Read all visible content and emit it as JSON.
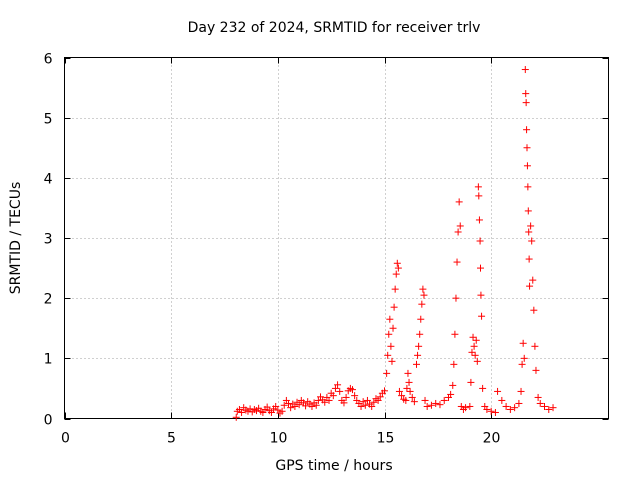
{
  "chart_data": {
    "type": "scatter",
    "title": "Day 232 of 2024, SRMTID for receiver trlv",
    "xlabel": "GPS time / hours",
    "ylabel": "SRMTID / TECUs",
    "xlim": [
      0,
      25.5
    ],
    "ylim": [
      0,
      6
    ],
    "xticks": [
      {
        "value": 0,
        "label": "0"
      },
      {
        "value": 5,
        "label": "5"
      },
      {
        "value": 10,
        "label": "10"
      },
      {
        "value": 15,
        "label": "15"
      },
      {
        "value": 20,
        "label": "20"
      }
    ],
    "yticks": [
      {
        "value": 0,
        "label": "0"
      },
      {
        "value": 1,
        "label": "1"
      },
      {
        "value": 2,
        "label": "2"
      },
      {
        "value": 3,
        "label": "3"
      },
      {
        "value": 4,
        "label": "4"
      },
      {
        "value": 5,
        "label": "5"
      },
      {
        "value": 6,
        "label": "6"
      }
    ],
    "grid": true,
    "marker": "+",
    "color": "#ff0000",
    "series": [
      {
        "name": "SRMTID",
        "points": [
          [
            8.05,
            0.02
          ],
          [
            8.1,
            0.12
          ],
          [
            8.2,
            0.15
          ],
          [
            8.3,
            0.1
          ],
          [
            8.4,
            0.18
          ],
          [
            8.5,
            0.14
          ],
          [
            8.6,
            0.12
          ],
          [
            8.7,
            0.16
          ],
          [
            8.8,
            0.11
          ],
          [
            8.9,
            0.15
          ],
          [
            9.0,
            0.13
          ],
          [
            9.1,
            0.17
          ],
          [
            9.2,
            0.12
          ],
          [
            9.3,
            0.1
          ],
          [
            9.4,
            0.15
          ],
          [
            9.5,
            0.19
          ],
          [
            9.6,
            0.13
          ],
          [
            9.7,
            0.1
          ],
          [
            9.8,
            0.16
          ],
          [
            9.9,
            0.2
          ],
          [
            10.0,
            0.14
          ],
          [
            10.1,
            0.09
          ],
          [
            10.2,
            0.12
          ],
          [
            10.3,
            0.22
          ],
          [
            10.4,
            0.3
          ],
          [
            10.5,
            0.25
          ],
          [
            10.6,
            0.18
          ],
          [
            10.7,
            0.24
          ],
          [
            10.8,
            0.2
          ],
          [
            10.9,
            0.27
          ],
          [
            11.0,
            0.23
          ],
          [
            11.1,
            0.3
          ],
          [
            11.2,
            0.26
          ],
          [
            11.3,
            0.21
          ],
          [
            11.4,
            0.28
          ],
          [
            11.5,
            0.24
          ],
          [
            11.6,
            0.2
          ],
          [
            11.7,
            0.26
          ],
          [
            11.8,
            0.22
          ],
          [
            11.9,
            0.3
          ],
          [
            12.0,
            0.36
          ],
          [
            12.1,
            0.31
          ],
          [
            12.2,
            0.27
          ],
          [
            12.3,
            0.35
          ],
          [
            12.4,
            0.3
          ],
          [
            12.5,
            0.42
          ],
          [
            12.6,
            0.38
          ],
          [
            12.7,
            0.5
          ],
          [
            12.8,
            0.56
          ],
          [
            12.9,
            0.45
          ],
          [
            13.0,
            0.3
          ],
          [
            13.1,
            0.26
          ],
          [
            13.2,
            0.35
          ],
          [
            13.3,
            0.46
          ],
          [
            13.4,
            0.5
          ],
          [
            13.5,
            0.48
          ],
          [
            13.6,
            0.38
          ],
          [
            13.7,
            0.3
          ],
          [
            13.8,
            0.25
          ],
          [
            13.9,
            0.2
          ],
          [
            14.0,
            0.28
          ],
          [
            14.1,
            0.22
          ],
          [
            14.2,
            0.3
          ],
          [
            14.3,
            0.24
          ],
          [
            14.4,
            0.2
          ],
          [
            14.5,
            0.27
          ],
          [
            14.6,
            0.33
          ],
          [
            14.7,
            0.3
          ],
          [
            14.8,
            0.36
          ],
          [
            14.9,
            0.42
          ],
          [
            15.0,
            0.46
          ],
          [
            15.1,
            0.75
          ],
          [
            15.15,
            1.05
          ],
          [
            15.2,
            1.4
          ],
          [
            15.25,
            1.65
          ],
          [
            15.3,
            1.2
          ],
          [
            15.35,
            0.95
          ],
          [
            15.4,
            1.5
          ],
          [
            15.45,
            1.85
          ],
          [
            15.5,
            2.15
          ],
          [
            15.55,
            2.4
          ],
          [
            15.6,
            2.58
          ],
          [
            15.65,
            2.5
          ],
          [
            15.7,
            0.45
          ],
          [
            15.8,
            0.38
          ],
          [
            15.9,
            0.32
          ],
          [
            16.0,
            0.3
          ],
          [
            16.05,
            0.5
          ],
          [
            16.1,
            0.75
          ],
          [
            16.15,
            0.6
          ],
          [
            16.2,
            0.45
          ],
          [
            16.3,
            0.35
          ],
          [
            16.4,
            0.28
          ],
          [
            16.5,
            0.9
          ],
          [
            16.55,
            1.05
          ],
          [
            16.6,
            1.2
          ],
          [
            16.65,
            1.4
          ],
          [
            16.7,
            1.65
          ],
          [
            16.75,
            1.9
          ],
          [
            16.8,
            2.15
          ],
          [
            16.85,
            2.05
          ],
          [
            16.9,
            0.3
          ],
          [
            17.0,
            0.2
          ],
          [
            17.2,
            0.22
          ],
          [
            17.4,
            0.25
          ],
          [
            17.6,
            0.23
          ],
          [
            17.8,
            0.3
          ],
          [
            18.0,
            0.35
          ],
          [
            18.1,
            0.4
          ],
          [
            18.2,
            0.55
          ],
          [
            18.25,
            0.9
          ],
          [
            18.3,
            1.4
          ],
          [
            18.35,
            2.0
          ],
          [
            18.4,
            2.6
          ],
          [
            18.45,
            3.1
          ],
          [
            18.5,
            3.6
          ],
          [
            18.55,
            3.2
          ],
          [
            18.6,
            0.2
          ],
          [
            18.7,
            0.15
          ],
          [
            18.8,
            0.18
          ],
          [
            19.0,
            0.2
          ],
          [
            19.05,
            0.6
          ],
          [
            19.1,
            1.1
          ],
          [
            19.15,
            1.35
          ],
          [
            19.2,
            1.2
          ],
          [
            19.25,
            1.05
          ],
          [
            19.3,
            1.3
          ],
          [
            19.35,
            0.95
          ],
          [
            19.4,
            3.85
          ],
          [
            19.42,
            3.7
          ],
          [
            19.45,
            3.3
          ],
          [
            19.48,
            2.95
          ],
          [
            19.5,
            2.5
          ],
          [
            19.52,
            2.05
          ],
          [
            19.55,
            1.7
          ],
          [
            19.6,
            0.5
          ],
          [
            19.7,
            0.2
          ],
          [
            19.8,
            0.15
          ],
          [
            20.0,
            0.12
          ],
          [
            20.2,
            0.1
          ],
          [
            20.3,
            0.45
          ],
          [
            20.5,
            0.3
          ],
          [
            20.7,
            0.2
          ],
          [
            20.9,
            0.15
          ],
          [
            21.1,
            0.18
          ],
          [
            21.3,
            0.25
          ],
          [
            21.4,
            0.45
          ],
          [
            21.45,
            0.9
          ],
          [
            21.5,
            1.25
          ],
          [
            21.55,
            1.0
          ],
          [
            21.6,
            5.8
          ],
          [
            21.62,
            5.4
          ],
          [
            21.64,
            5.25
          ],
          [
            21.66,
            4.8
          ],
          [
            21.68,
            4.5
          ],
          [
            21.7,
            4.2
          ],
          [
            21.72,
            3.85
          ],
          [
            21.74,
            3.45
          ],
          [
            21.76,
            3.1
          ],
          [
            21.78,
            2.65
          ],
          [
            21.8,
            2.2
          ],
          [
            21.85,
            3.2
          ],
          [
            21.9,
            2.95
          ],
          [
            21.95,
            2.3
          ],
          [
            22.0,
            1.8
          ],
          [
            22.05,
            1.2
          ],
          [
            22.1,
            0.8
          ],
          [
            22.2,
            0.35
          ],
          [
            22.3,
            0.25
          ],
          [
            22.5,
            0.2
          ],
          [
            22.7,
            0.15
          ],
          [
            22.9,
            0.18
          ]
        ]
      }
    ]
  }
}
